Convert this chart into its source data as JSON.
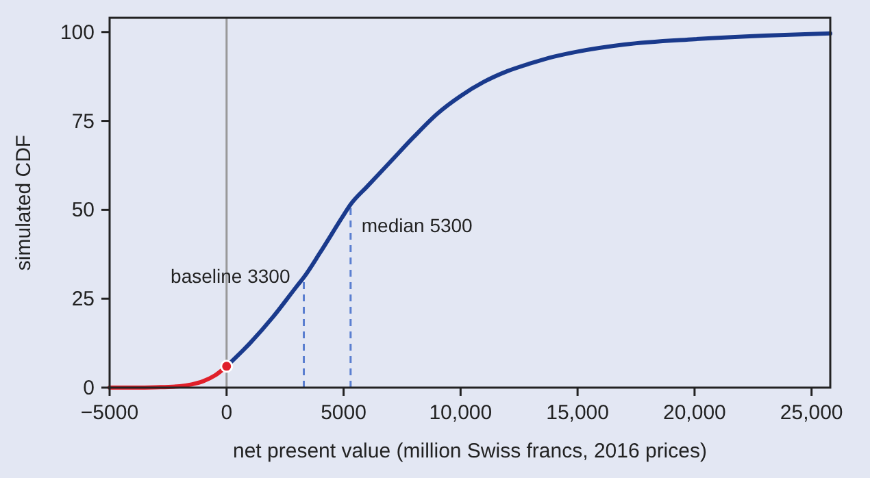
{
  "chart_data": {
    "type": "line",
    "xlabel": "net present value (million Swiss francs, 2016 prices)",
    "ylabel": "simulated CDF",
    "xlim": [
      -5000,
      25800
    ],
    "ylim": [
      0,
      104
    ],
    "xticks": [
      {
        "value": -5000,
        "label": "−5000"
      },
      0,
      5000,
      {
        "value": 10000,
        "label": "10,000"
      },
      {
        "value": 15000,
        "label": "15,000"
      },
      {
        "value": 20000,
        "label": "20,000"
      },
      {
        "value": 25000,
        "label": "25,000"
      }
    ],
    "yticks": [
      0,
      25,
      50,
      75,
      100
    ],
    "grid": false,
    "series": [
      {
        "color": "#e0202a",
        "x": [
          -5000,
          -4000,
          -3000,
          -2000,
          -1500,
          -1000,
          -500,
          0
        ],
        "values": [
          0,
          0,
          0.1,
          0.4,
          0.9,
          1.8,
          3.4,
          6
        ]
      },
      {
        "color": "#1a3a8c",
        "x": [
          0,
          1000,
          2000,
          3000,
          3300,
          4000,
          5000,
          5300,
          6000,
          7000,
          8000,
          9000,
          10000,
          11000,
          12000,
          13000,
          14000,
          15000,
          17000,
          20000,
          23000,
          25800
        ],
        "values": [
          6,
          12.5,
          20,
          28.5,
          31,
          38,
          48.5,
          51.5,
          56.5,
          63.5,
          70.5,
          77,
          82,
          86,
          89,
          91.2,
          93.1,
          94.5,
          96.5,
          98,
          99,
          99.6
        ]
      },
      {
        "type": "scatter",
        "color": "#e0202a",
        "marker": "circle",
        "x": [
          0
        ],
        "values": [
          6
        ]
      }
    ],
    "ref_lines": [
      {
        "axis": "x",
        "value": 0,
        "color": "#999999"
      }
    ],
    "annotations": [
      {
        "text": "baseline 3300",
        "x": 3300,
        "y": 31
      },
      {
        "text": "median 5300",
        "x": 5300,
        "y": 51.5
      }
    ]
  }
}
